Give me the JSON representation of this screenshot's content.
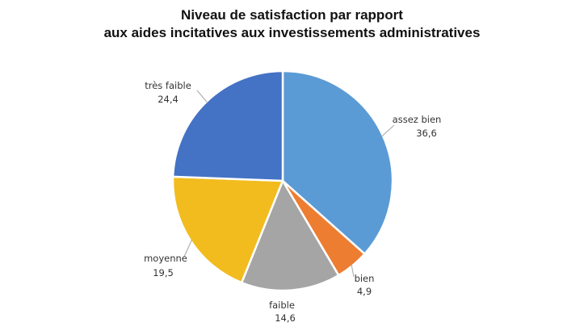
{
  "chart_data": {
    "type": "pie",
    "title_lines": [
      "Niveau de satisfaction par rapport",
      "aux aides incitatives aux investissements administratives"
    ],
    "legend": "none",
    "slices": [
      {
        "label": "assez bien",
        "value": 36.6,
        "value_text": "36,6",
        "color": "#5b9bd5"
      },
      {
        "label": "bien",
        "value": 4.9,
        "value_text": "4,9",
        "color": "#ed7d31"
      },
      {
        "label": "faible",
        "value": 14.6,
        "value_text": "14,6",
        "color": "#a5a5a5"
      },
      {
        "label": "moyenne",
        "value": 19.5,
        "value_text": "19,5",
        "color": "#f2bc1f"
      },
      {
        "label": "très faible",
        "value": 24.4,
        "value_text": "24,4",
        "color": "#4472c4"
      }
    ]
  }
}
